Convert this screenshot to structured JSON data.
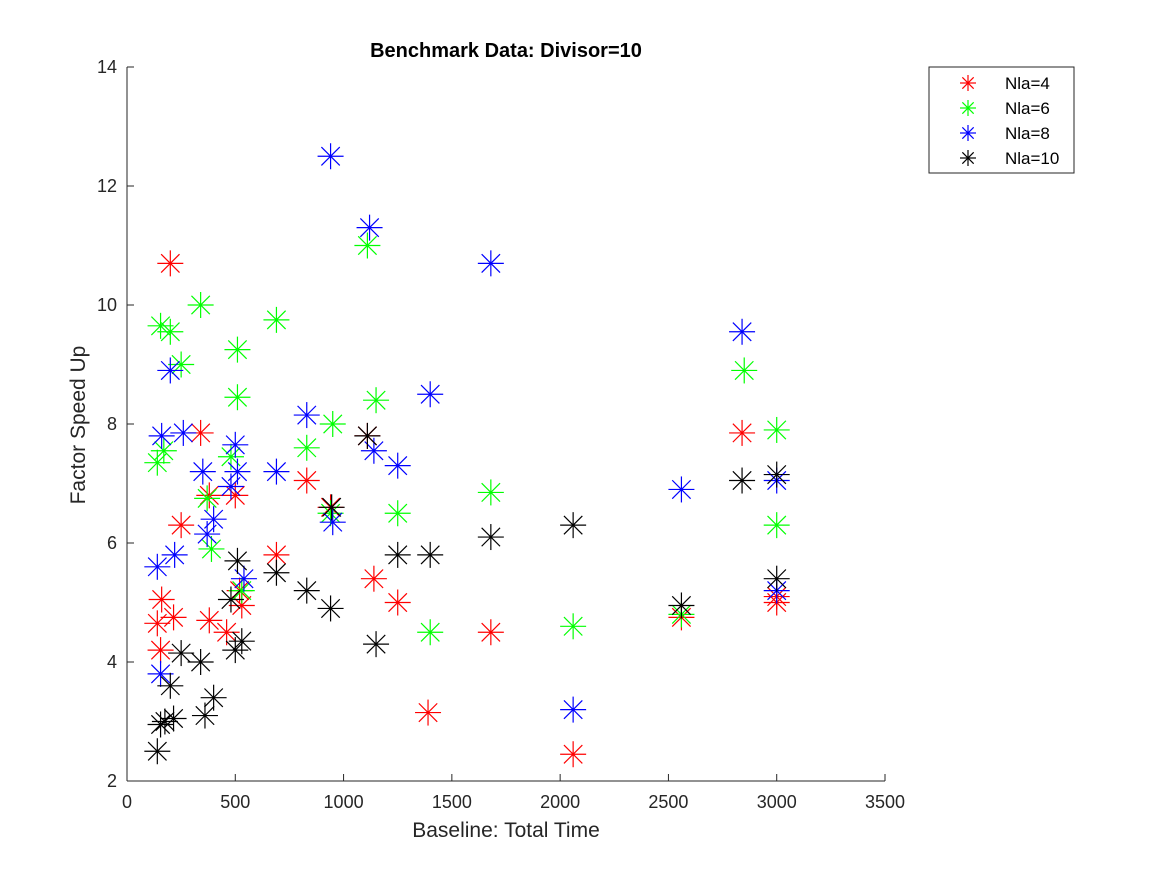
{
  "chart_data": {
    "type": "scatter",
    "title": "Benchmark Data:   Divisor=10",
    "xlabel": "Baseline:  Total Time",
    "ylabel": "Factor Speed Up",
    "xlim": [
      0,
      3500
    ],
    "ylim": [
      2,
      14
    ],
    "xticks": [
      0,
      500,
      1000,
      1500,
      2000,
      2500,
      3000,
      3500
    ],
    "yticks": [
      2,
      4,
      6,
      8,
      10,
      12,
      14
    ],
    "grid": false,
    "legend_position": "top-right",
    "marker": "asterisk",
    "series": [
      {
        "name": "Nla=4",
        "color": "#ff0000",
        "points": [
          [
            140,
            4.65
          ],
          [
            155,
            4.2
          ],
          [
            160,
            5.05
          ],
          [
            200,
            10.7
          ],
          [
            215,
            4.75
          ],
          [
            250,
            6.3
          ],
          [
            340,
            7.85
          ],
          [
            380,
            4.7
          ],
          [
            380,
            6.8
          ],
          [
            460,
            4.5
          ],
          [
            500,
            6.8
          ],
          [
            520,
            5.2
          ],
          [
            530,
            4.95
          ],
          [
            690,
            5.8
          ],
          [
            830,
            7.05
          ],
          [
            940,
            6.6
          ],
          [
            1110,
            7.8
          ],
          [
            1140,
            5.4
          ],
          [
            1250,
            5.0
          ],
          [
            1390,
            3.15
          ],
          [
            1680,
            4.5
          ],
          [
            2060,
            2.45
          ],
          [
            2560,
            4.75
          ],
          [
            2840,
            7.85
          ],
          [
            3000,
            5.0
          ],
          [
            3000,
            5.1
          ]
        ]
      },
      {
        "name": "Nla=6",
        "color": "#00ff00",
        "points": [
          [
            140,
            7.35
          ],
          [
            155,
            9.65
          ],
          [
            170,
            7.55
          ],
          [
            200,
            9.55
          ],
          [
            250,
            9.0
          ],
          [
            340,
            10.0
          ],
          [
            370,
            6.75
          ],
          [
            390,
            5.9
          ],
          [
            480,
            7.45
          ],
          [
            510,
            9.25
          ],
          [
            510,
            8.45
          ],
          [
            530,
            5.2
          ],
          [
            690,
            9.75
          ],
          [
            830,
            7.6
          ],
          [
            940,
            6.5
          ],
          [
            950,
            8.0
          ],
          [
            1110,
            11.0
          ],
          [
            1150,
            8.4
          ],
          [
            1250,
            6.5
          ],
          [
            1400,
            4.5
          ],
          [
            1680,
            6.85
          ],
          [
            2060,
            4.6
          ],
          [
            2560,
            4.8
          ],
          [
            2850,
            8.9
          ],
          [
            3000,
            7.9
          ],
          [
            3000,
            6.3
          ]
        ]
      },
      {
        "name": "Nla=8",
        "color": "#0000ff",
        "points": [
          [
            140,
            5.6
          ],
          [
            155,
            3.8
          ],
          [
            160,
            7.8
          ],
          [
            200,
            8.9
          ],
          [
            220,
            5.8
          ],
          [
            260,
            7.85
          ],
          [
            350,
            7.2
          ],
          [
            370,
            6.15
          ],
          [
            400,
            6.4
          ],
          [
            480,
            6.95
          ],
          [
            500,
            7.65
          ],
          [
            510,
            7.2
          ],
          [
            540,
            5.4
          ],
          [
            690,
            7.2
          ],
          [
            830,
            8.15
          ],
          [
            940,
            12.5
          ],
          [
            950,
            6.35
          ],
          [
            1120,
            11.3
          ],
          [
            1140,
            7.55
          ],
          [
            1250,
            7.3
          ],
          [
            1400,
            8.5
          ],
          [
            1680,
            10.7
          ],
          [
            2060,
            3.2
          ],
          [
            2560,
            6.9
          ],
          [
            2840,
            9.55
          ],
          [
            3000,
            7.05
          ],
          [
            3000,
            5.2
          ]
        ]
      },
      {
        "name": "Nla=10",
        "color": "#000000",
        "points": [
          [
            140,
            2.5
          ],
          [
            155,
            2.95
          ],
          [
            175,
            3.0
          ],
          [
            200,
            3.6
          ],
          [
            215,
            3.05
          ],
          [
            250,
            4.15
          ],
          [
            340,
            4.0
          ],
          [
            360,
            3.1
          ],
          [
            400,
            3.4
          ],
          [
            480,
            5.05
          ],
          [
            500,
            4.2
          ],
          [
            510,
            5.7
          ],
          [
            530,
            4.35
          ],
          [
            690,
            5.5
          ],
          [
            830,
            5.2
          ],
          [
            940,
            4.9
          ],
          [
            945,
            6.6
          ],
          [
            1110,
            7.8
          ],
          [
            1150,
            4.3
          ],
          [
            1250,
            5.8
          ],
          [
            1400,
            5.8
          ],
          [
            1680,
            6.1
          ],
          [
            2060,
            6.3
          ],
          [
            2560,
            4.95
          ],
          [
            2840,
            7.05
          ],
          [
            3000,
            7.15
          ],
          [
            3000,
            5.4
          ]
        ]
      }
    ]
  }
}
